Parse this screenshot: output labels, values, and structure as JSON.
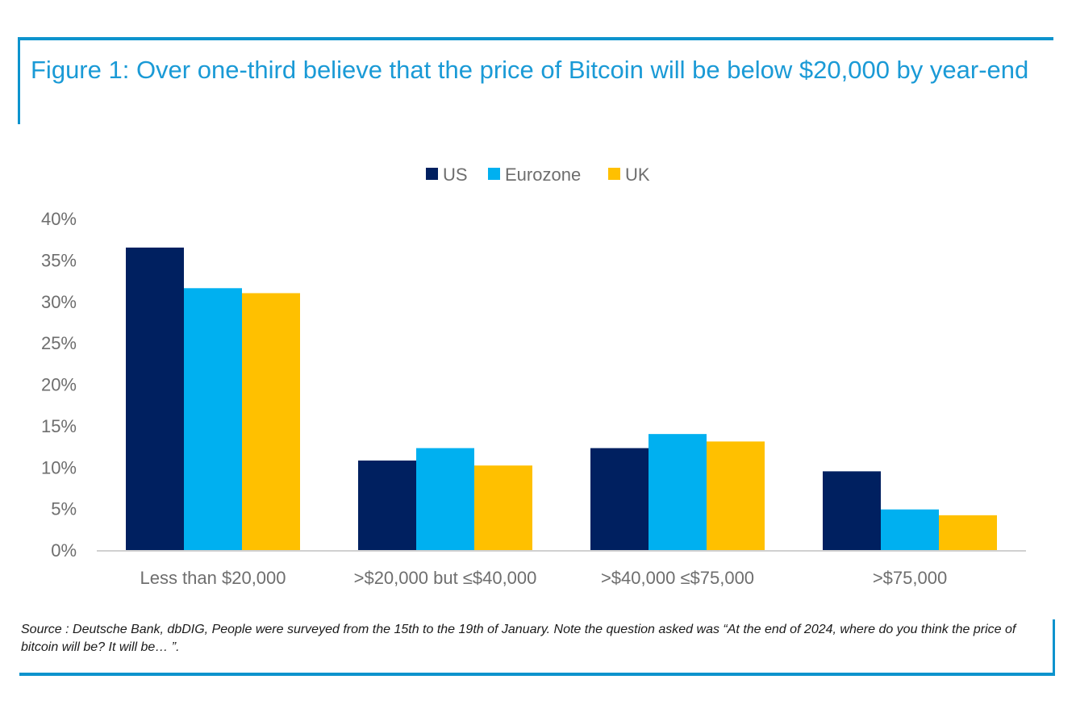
{
  "figure": {
    "title": "Figure 1: Over one-third believe that the price of Bitcoin will be below $20,000 by year-end",
    "source": "Source : Deutsche Bank, dbDIG, People were surveyed from the 15th to the 19th of January. Note the question asked was “At the end of 2024, where do you think the price of bitcoin will be? It will be… ”."
  },
  "colors": {
    "accent": "#0d93cd",
    "US": "#002060",
    "Eurozone": "#00b0f0",
    "UK": "#ffc000",
    "tick_text": "#6e6e6e",
    "axis": "#d0d0d0"
  },
  "chart_data": {
    "type": "bar",
    "title": "Figure 1: Over one-third believe that the price of Bitcoin will be below $20,000 by year-end",
    "xlabel": "",
    "ylabel": "",
    "categories": [
      "Less than $20,000",
      ">$20,000 but ≤$40,000",
      ">$40,000 ≤$75,000",
      ">$75,000"
    ],
    "series": [
      {
        "name": "US",
        "color": "#002060",
        "values": [
          36.5,
          10.8,
          12.3,
          9.5
        ]
      },
      {
        "name": "Eurozone",
        "color": "#00b0f0",
        "values": [
          31.6,
          12.3,
          14.0,
          4.9
        ]
      },
      {
        "name": "UK",
        "color": "#ffc000",
        "values": [
          31.0,
          10.2,
          13.1,
          4.2
        ]
      }
    ],
    "ylim": [
      0,
      40
    ],
    "yticks": [
      0,
      5,
      10,
      15,
      20,
      25,
      30,
      35,
      40
    ],
    "ytick_labels": [
      "0%",
      "5%",
      "10%",
      "15%",
      "20%",
      "25%",
      "30%",
      "35%",
      "40%"
    ],
    "grid": false,
    "legend_position": "top-center"
  }
}
